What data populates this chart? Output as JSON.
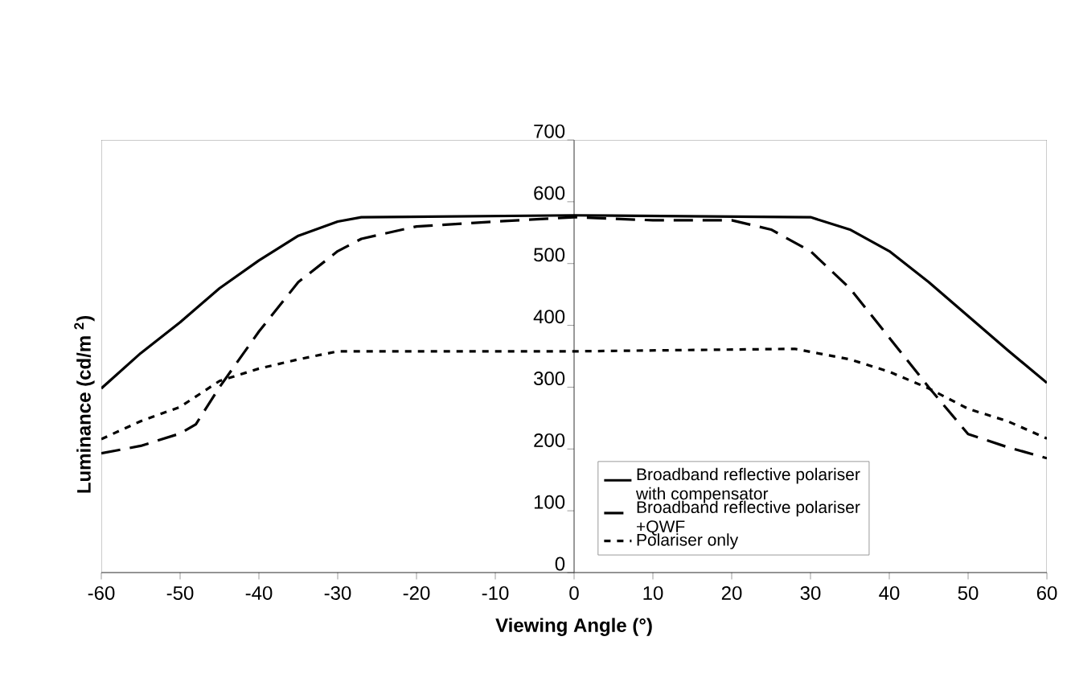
{
  "chart_data": {
    "type": "line",
    "xlabel": "Viewing Angle (°)",
    "ylabel": "Luminance (cd/m $^{2}$)",
    "xlim": [
      -60,
      60
    ],
    "ylim": [
      0,
      700
    ],
    "xticks": [
      -60,
      -50,
      -40,
      -30,
      -20,
      -10,
      0,
      10,
      20,
      30,
      40,
      50,
      60
    ],
    "yticks": [
      0,
      100,
      200,
      300,
      400,
      500,
      600,
      700
    ],
    "grid": false,
    "legend": "bottom right",
    "marker": "none",
    "series": [
      {
        "name": "Broadband reflective polariser with compensator",
        "color": "#000000",
        "line_style": "solid",
        "x": [
          -60,
          -55,
          -50,
          -45,
          -40,
          -35,
          -30,
          -27,
          0,
          30,
          35,
          40,
          45,
          50,
          55,
          60
        ],
        "values": [
          298,
          355,
          405,
          460,
          505,
          545,
          568,
          575,
          578,
          575,
          555,
          520,
          470,
          415,
          360,
          307
        ]
      },
      {
        "name": "Broadband reflective polariser +QWF",
        "color": "#000000",
        "line_style": "dashed",
        "x": [
          -60,
          -55,
          -50,
          -48,
          -45,
          -40,
          -35,
          -30,
          -27,
          -20,
          -10,
          0,
          10,
          20,
          25,
          30,
          35,
          40,
          45,
          50,
          55,
          60
        ],
        "values": [
          193,
          205,
          225,
          240,
          300,
          390,
          470,
          520,
          540,
          560,
          568,
          575,
          570,
          570,
          555,
          520,
          460,
          380,
          300,
          224,
          203,
          185
        ]
      },
      {
        "name": "Polariser only",
        "color": "#000000",
        "line_style": "dotted",
        "x": [
          -60,
          -55,
          -50,
          -45,
          -40,
          -35,
          -30,
          0,
          28,
          35,
          40,
          45,
          50,
          55,
          60
        ],
        "values": [
          216,
          245,
          268,
          310,
          330,
          345,
          358,
          358,
          362,
          345,
          325,
          298,
          265,
          245,
          217
        ]
      }
    ]
  }
}
